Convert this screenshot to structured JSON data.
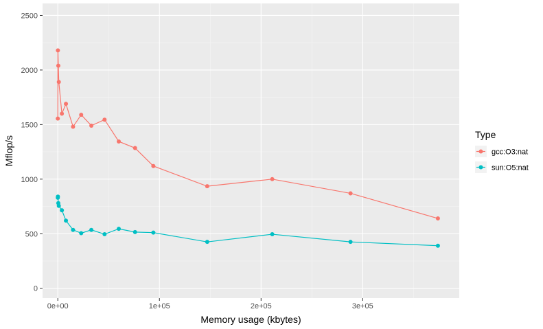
{
  "chart_data": {
    "type": "line",
    "xlabel": "Memory usage (kbytes)",
    "ylabel": "Mflop/s",
    "xlim": [
      -15000,
      395000
    ],
    "ylim": [
      -90,
      2610
    ],
    "x_ticks": [
      0,
      100000,
      200000,
      300000
    ],
    "x_tick_labels": [
      "0e+00",
      "1e+05",
      "2e+05",
      "3e+05"
    ],
    "y_ticks": [
      0,
      500,
      1000,
      1500,
      2000,
      2500
    ],
    "y_tick_labels": [
      "0",
      "500",
      "1000",
      "1500",
      "2000",
      "2500"
    ],
    "grid": true,
    "legend": {
      "title": "Type",
      "position": "right"
    },
    "series": [
      {
        "name": "gcc:O3:nat",
        "color": "#F8766D",
        "x": [
          0,
          100,
          500,
          1000,
          4000,
          8000,
          15000,
          23000,
          33000,
          46000,
          60000,
          76000,
          94000,
          147000,
          211000,
          288000,
          374000
        ],
        "y": [
          1555,
          2180,
          2040,
          1890,
          1600,
          1690,
          1480,
          1590,
          1490,
          1545,
          1345,
          1285,
          1120,
          935,
          1000,
          870,
          640
        ]
      },
      {
        "name": "sun:O5:nat",
        "color": "#00BFC4",
        "x": [
          0,
          100,
          500,
          1000,
          4000,
          8000,
          15000,
          23000,
          33000,
          46000,
          60000,
          76000,
          94000,
          147000,
          211000,
          288000,
          374000
        ],
        "y": [
          830,
          840,
          780,
          755,
          715,
          620,
          535,
          505,
          535,
          495,
          545,
          515,
          510,
          425,
          495,
          425,
          390
        ]
      }
    ]
  }
}
